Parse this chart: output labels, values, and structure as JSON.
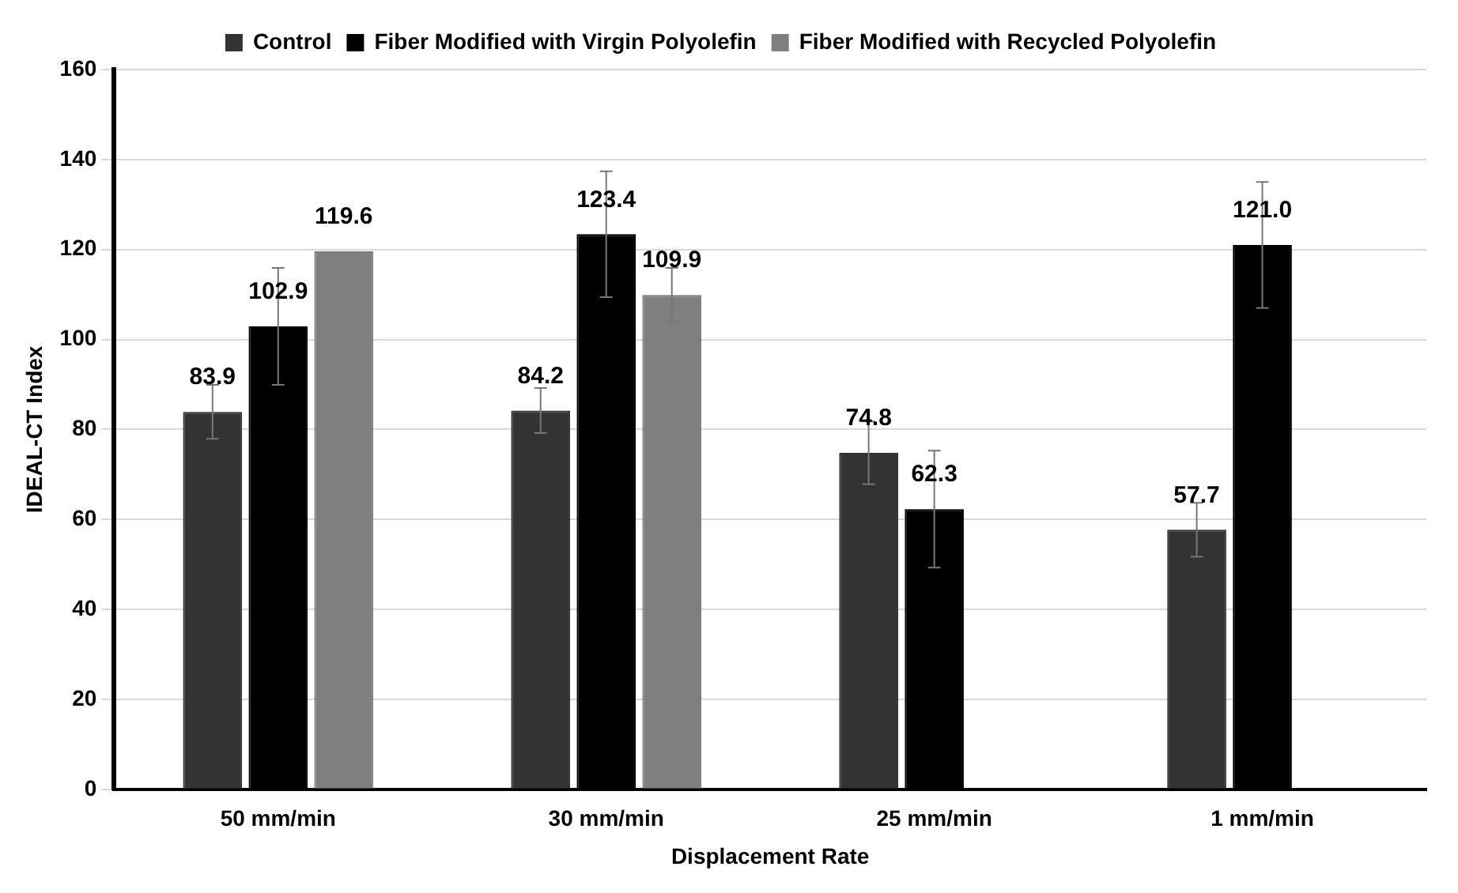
{
  "chart_data": {
    "type": "bar",
    "xlabel": "Displacement Rate",
    "ylabel": "IDEAL-CT Index",
    "categories": [
      "50 mm/min",
      "30 mm/min",
      "25 mm/min",
      "1 mm/min"
    ],
    "series": [
      {
        "name": "Control",
        "color": "#333333",
        "values": [
          83.9,
          84.2,
          74.8,
          57.7
        ],
        "value_labels": [
          "83.9",
          "84.2",
          "74.8",
          "57.7"
        ],
        "errors": [
          6,
          5,
          7,
          6
        ]
      },
      {
        "name": "Fiber Modified with Virgin Polyolefin",
        "color": "#000000",
        "values": [
          102.9,
          123.4,
          62.3,
          121.0
        ],
        "value_labels": [
          "102.9",
          "123.4",
          "62.3",
          "121.0"
        ],
        "errors": [
          13,
          14,
          13,
          14
        ]
      },
      {
        "name": "Fiber Modified with Recycled Polyolefin",
        "color": "#7f7f7f",
        "values": [
          119.6,
          109.9,
          null,
          null
        ],
        "value_labels": [
          "119.6",
          "109.9",
          null,
          null
        ],
        "errors": [
          null,
          6,
          null,
          null
        ]
      }
    ],
    "ylim": [
      0,
      160
    ],
    "yticks": [
      0,
      20,
      40,
      60,
      80,
      100,
      120,
      140,
      160
    ],
    "grid": "y",
    "legend": "top"
  }
}
